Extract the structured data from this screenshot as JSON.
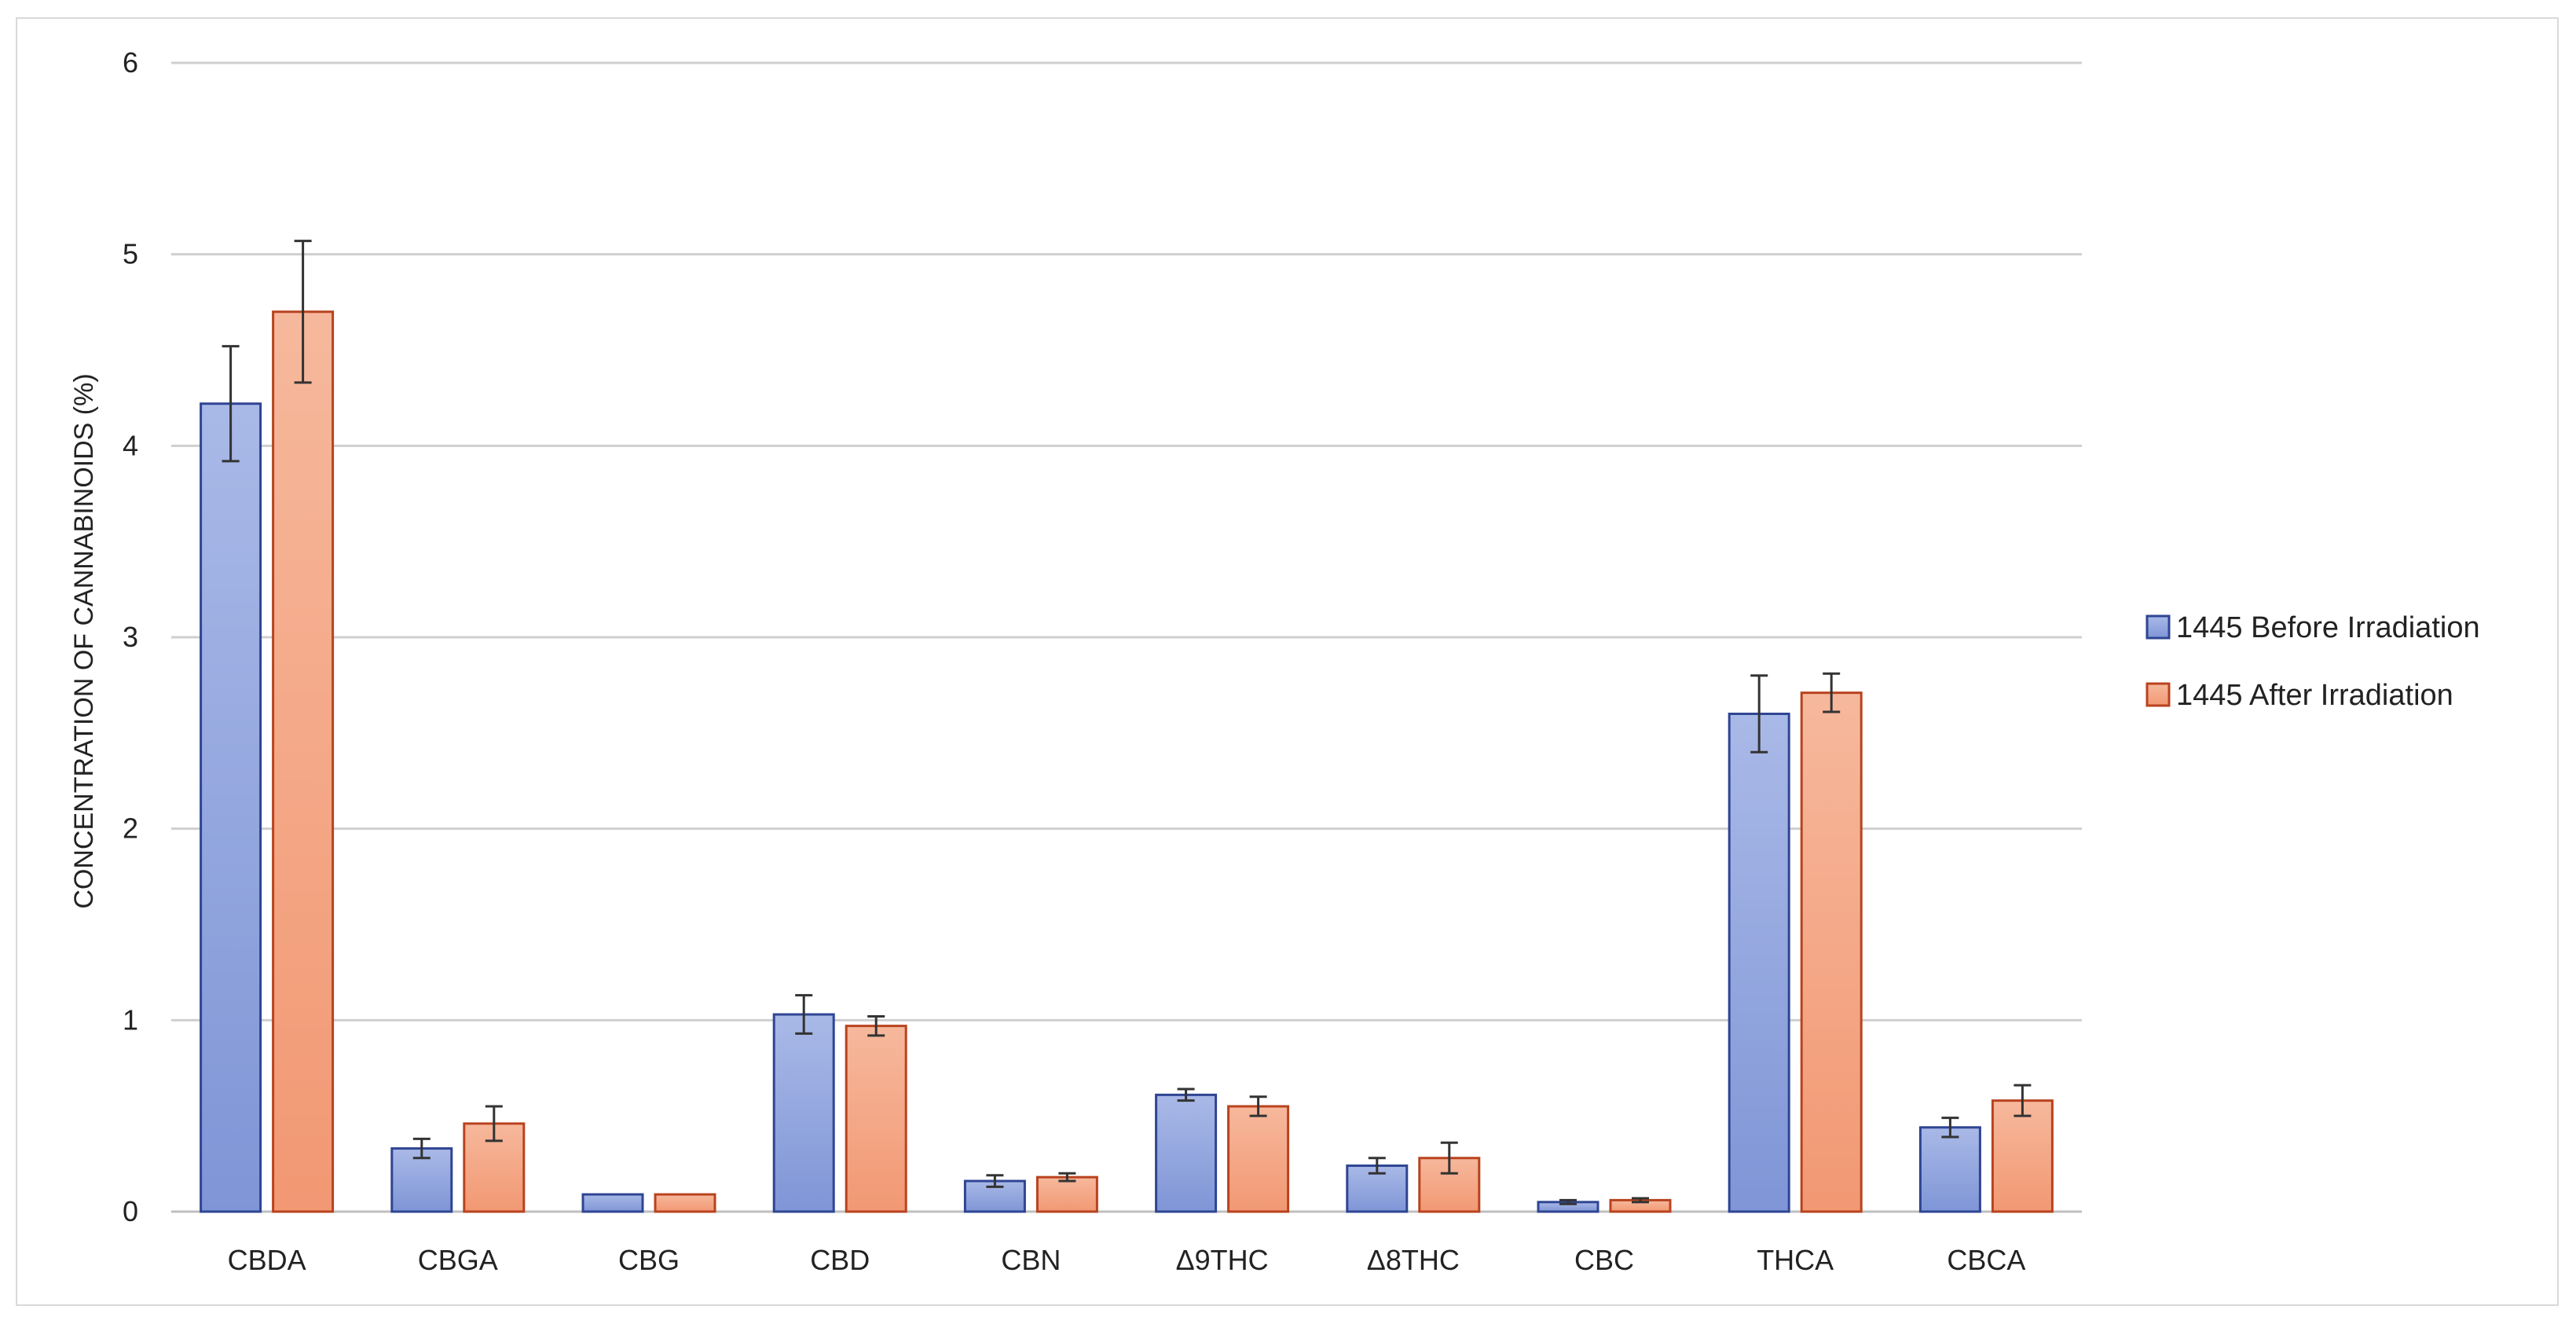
{
  "chart_data": {
    "type": "bar",
    "title": "",
    "xlabel": "",
    "ylabel": "CONCENTRATION OF CANNABINOIDS (%)",
    "ylim": [
      0,
      6
    ],
    "yticks": [
      "0",
      "1",
      "2",
      "3",
      "4",
      "5",
      "6"
    ],
    "grid": true,
    "legend_position": "right",
    "categories": [
      "CBDA",
      "CBGA",
      "CBG",
      "CBD",
      "CBN",
      "Δ9THC",
      "Δ8THC",
      "CBC",
      "THCA",
      "CBCA"
    ],
    "series": [
      {
        "name": "1445 Before Irradiation",
        "color": "#8fa3dd",
        "values": [
          4.22,
          0.33,
          0.09,
          1.03,
          0.16,
          0.61,
          0.24,
          0.05,
          2.6,
          0.44
        ],
        "errors": [
          0.3,
          0.05,
          0.0,
          0.1,
          0.03,
          0.03,
          0.04,
          0.01,
          0.2,
          0.05
        ]
      },
      {
        "name": "1445 After Irradiation",
        "color": "#f5a27e",
        "values": [
          4.7,
          0.46,
          0.09,
          0.97,
          0.18,
          0.55,
          0.28,
          0.06,
          2.71,
          0.58
        ],
        "errors": [
          0.37,
          0.09,
          0.0,
          0.05,
          0.02,
          0.05,
          0.08,
          0.01,
          0.1,
          0.08
        ]
      }
    ]
  }
}
